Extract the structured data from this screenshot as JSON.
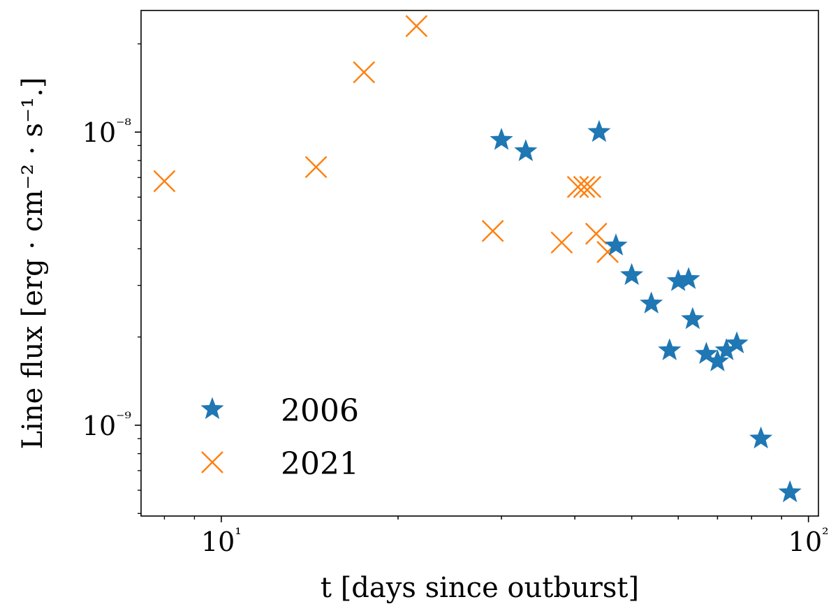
{
  "chart_data": {
    "type": "scatter",
    "title": "",
    "xlabel": "t [days since outburst]",
    "ylabel": "Line flux [erg · cm⁻² · s⁻¹.]",
    "xscale": "log",
    "yscale": "log",
    "xlim": [
      7.3,
      104
    ],
    "ylim": [
      4.9e-10,
      2.6e-08
    ],
    "grid": false,
    "legend": {
      "placement": "lower-left"
    },
    "x_ticks": [
      {
        "value": 10,
        "label": "10¹"
      },
      {
        "value": 100,
        "label": "10²"
      }
    ],
    "y_ticks": [
      {
        "value": 1e-09,
        "label": "10⁻⁹"
      },
      {
        "value": 1e-08,
        "label": "10⁻⁸"
      }
    ],
    "series": [
      {
        "name": "2006",
        "marker": "star",
        "color": "#1f77b4",
        "points": [
          {
            "x": 30.0,
            "y": 9.4e-09
          },
          {
            "x": 33.0,
            "y": 8.6e-09
          },
          {
            "x": 44.0,
            "y": 1e-08
          },
          {
            "x": 47.0,
            "y": 4.1e-09
          },
          {
            "x": 50.0,
            "y": 3.25e-09
          },
          {
            "x": 54.0,
            "y": 2.6e-09
          },
          {
            "x": 58.0,
            "y": 1.8e-09
          },
          {
            "x": 60.0,
            "y": 3.1e-09
          },
          {
            "x": 62.5,
            "y": 3.15e-09
          },
          {
            "x": 63.5,
            "y": 2.3e-09
          },
          {
            "x": 67.0,
            "y": 1.75e-09
          },
          {
            "x": 70.0,
            "y": 1.65e-09
          },
          {
            "x": 72.5,
            "y": 1.8e-09
          },
          {
            "x": 75.5,
            "y": 1.9e-09
          },
          {
            "x": 83.0,
            "y": 9e-10
          },
          {
            "x": 93.0,
            "y": 5.9e-10
          }
        ]
      },
      {
        "name": "2021",
        "marker": "x",
        "color": "#ff7f0e",
        "points": [
          {
            "x": 8.0,
            "y": 6.8e-09
          },
          {
            "x": 14.5,
            "y": 7.6e-09
          },
          {
            "x": 17.5,
            "y": 1.6e-08
          },
          {
            "x": 21.5,
            "y": 2.3e-08
          },
          {
            "x": 29.0,
            "y": 4.6e-09
          },
          {
            "x": 38.0,
            "y": 4.2e-09
          },
          {
            "x": 40.5,
            "y": 6.5e-09
          },
          {
            "x": 41.5,
            "y": 6.5e-09
          },
          {
            "x": 42.5,
            "y": 6.5e-09
          },
          {
            "x": 43.5,
            "y": 4.5e-09
          },
          {
            "x": 45.5,
            "y": 3.9e-09
          }
        ]
      }
    ]
  }
}
